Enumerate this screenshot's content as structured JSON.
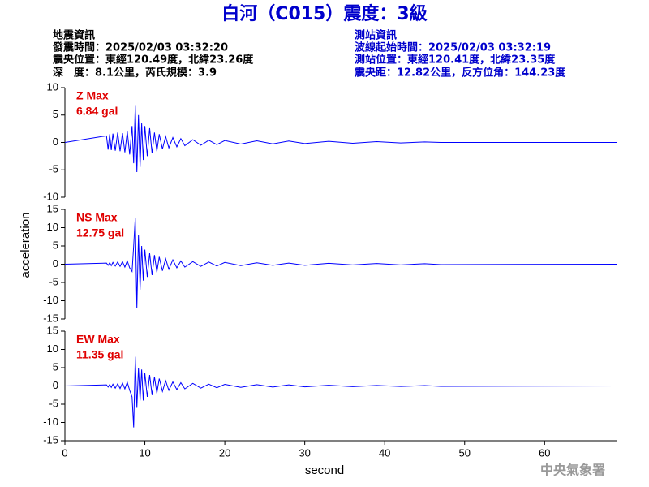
{
  "title": "白河（C015）震度：3級",
  "header": {
    "left": [
      "地震資訊",
      "發震時間：2025/02/03 03:32:20",
      "震央位置：東經120.49度，北緯23.26度",
      "深　度：8.1公里，芮氏規模：3.9"
    ],
    "right": [
      "測站資訊",
      "波線起始時間：2025/02/03 03:32:19",
      "測站位置：東經120.41度，北緯23.35度",
      "震央距：12.82公里，反方位角：144.23度"
    ]
  },
  "ylabel": "acceleration",
  "watermark": "中央氣象署",
  "chart_data": [
    {
      "type": "line",
      "name": "Z Max",
      "max_label": "6.84 gal",
      "label_color": "#e00000",
      "color": "#0000ff",
      "xlim": [
        0,
        69
      ],
      "ylim": [
        -10,
        10
      ],
      "yticks": [
        -10,
        -5,
        0,
        5,
        10
      ],
      "x": [
        0,
        5.2,
        5.4,
        5.6,
        5.8,
        6.0,
        6.3,
        6.6,
        6.9,
        7.2,
        7.5,
        7.8,
        8.1,
        8.4,
        8.6,
        8.8,
        9.0,
        9.2,
        9.4,
        9.6,
        9.8,
        10.0,
        10.3,
        10.6,
        10.9,
        11.2,
        11.5,
        11.8,
        12.2,
        12.6,
        13.0,
        13.5,
        14.0,
        14.5,
        15,
        16,
        17,
        18,
        19,
        20,
        22,
        24,
        26,
        28,
        30,
        33,
        36,
        39,
        42,
        45,
        47,
        69
      ],
      "values": [
        0,
        1.2,
        -1.3,
        1.5,
        -1.4,
        1.6,
        -1.5,
        1.8,
        -1.6,
        1.7,
        -1.8,
        2.0,
        -2.2,
        3.0,
        -3.8,
        6.84,
        -5.4,
        5.0,
        -4.5,
        3.5,
        -3.2,
        3.0,
        -2.5,
        2.6,
        -2.0,
        1.8,
        -1.6,
        1.5,
        -1.2,
        1.1,
        -1.0,
        0.9,
        -0.8,
        0.7,
        -0.6,
        0.5,
        -0.5,
        0.4,
        -0.4,
        0.35,
        -0.3,
        0.3,
        -0.25,
        0.25,
        -0.2,
        0.2,
        -0.15,
        0.15,
        -0.1,
        0.1,
        0,
        0
      ]
    },
    {
      "type": "line",
      "name": "NS Max",
      "max_label": "12.75 gal",
      "label_color": "#e00000",
      "color": "#0000ff",
      "xlim": [
        0,
        69
      ],
      "ylim": [
        -15,
        15
      ],
      "yticks": [
        -15,
        -10,
        -5,
        0,
        5,
        10,
        15
      ],
      "x": [
        0,
        5.2,
        5.4,
        5.6,
        5.8,
        6.0,
        6.3,
        6.6,
        6.9,
        7.2,
        7.5,
        7.8,
        8.1,
        8.4,
        8.6,
        8.8,
        9.0,
        9.2,
        9.4,
        9.6,
        9.8,
        10.0,
        10.3,
        10.6,
        10.9,
        11.2,
        11.5,
        11.8,
        12.2,
        12.6,
        13.0,
        13.5,
        14.0,
        14.5,
        15,
        16,
        17,
        18,
        19,
        20,
        22,
        24,
        26,
        28,
        30,
        33,
        36,
        39,
        42,
        45,
        47,
        69
      ],
      "values": [
        0,
        0.3,
        -0.3,
        0.4,
        -0.4,
        0.5,
        -0.5,
        0.6,
        -0.6,
        0.7,
        -0.8,
        0.9,
        -1.0,
        -2.0,
        5.0,
        12.75,
        -12.0,
        8.0,
        -7.0,
        5.0,
        -4.5,
        4.0,
        -3.5,
        3.0,
        -3.0,
        2.5,
        -2.2,
        2.0,
        -1.8,
        1.5,
        -1.4,
        1.2,
        -1.0,
        0.9,
        -0.8,
        0.7,
        -0.6,
        0.6,
        -0.5,
        0.5,
        -0.4,
        0.4,
        -0.3,
        0.3,
        -0.3,
        0.25,
        -0.2,
        0.2,
        -0.2,
        0.15,
        -0.1,
        0
      ]
    },
    {
      "type": "line",
      "name": "EW Max",
      "max_label": "11.35 gal",
      "label_color": "#e00000",
      "color": "#0000ff",
      "xlim": [
        0,
        69
      ],
      "ylim": [
        -15,
        15
      ],
      "yticks": [
        -15,
        -10,
        -5,
        0,
        5,
        10,
        15
      ],
      "xticks": [
        0,
        10,
        20,
        30,
        40,
        50,
        60
      ],
      "xlabel": "second",
      "x": [
        0,
        5.2,
        5.4,
        5.6,
        5.8,
        6.0,
        6.3,
        6.6,
        6.9,
        7.2,
        7.5,
        7.8,
        8.1,
        8.4,
        8.6,
        8.8,
        9.0,
        9.2,
        9.4,
        9.6,
        9.8,
        10.0,
        10.3,
        10.6,
        10.9,
        11.2,
        11.5,
        11.8,
        12.2,
        12.6,
        13.0,
        13.5,
        14.0,
        14.5,
        15,
        16,
        17,
        18,
        19,
        20,
        22,
        24,
        26,
        28,
        30,
        33,
        36,
        39,
        42,
        45,
        47,
        69
      ],
      "values": [
        0,
        0.3,
        -0.3,
        0.4,
        -0.4,
        0.5,
        -0.6,
        0.6,
        -0.7,
        0.8,
        -0.8,
        1.0,
        -1.2,
        -3.0,
        -11.35,
        8.0,
        -6.0,
        5.0,
        -4.0,
        4.5,
        -4.0,
        3.5,
        -3.0,
        3.0,
        -2.5,
        2.5,
        -2.0,
        2.0,
        -1.5,
        1.4,
        -1.2,
        1.1,
        -1.0,
        0.9,
        -0.8,
        0.7,
        -0.6,
        0.5,
        -0.5,
        0.45,
        -0.4,
        0.35,
        -0.3,
        0.3,
        -0.25,
        0.2,
        -0.2,
        0.15,
        -0.15,
        0.1,
        -0.1,
        0
      ]
    }
  ]
}
